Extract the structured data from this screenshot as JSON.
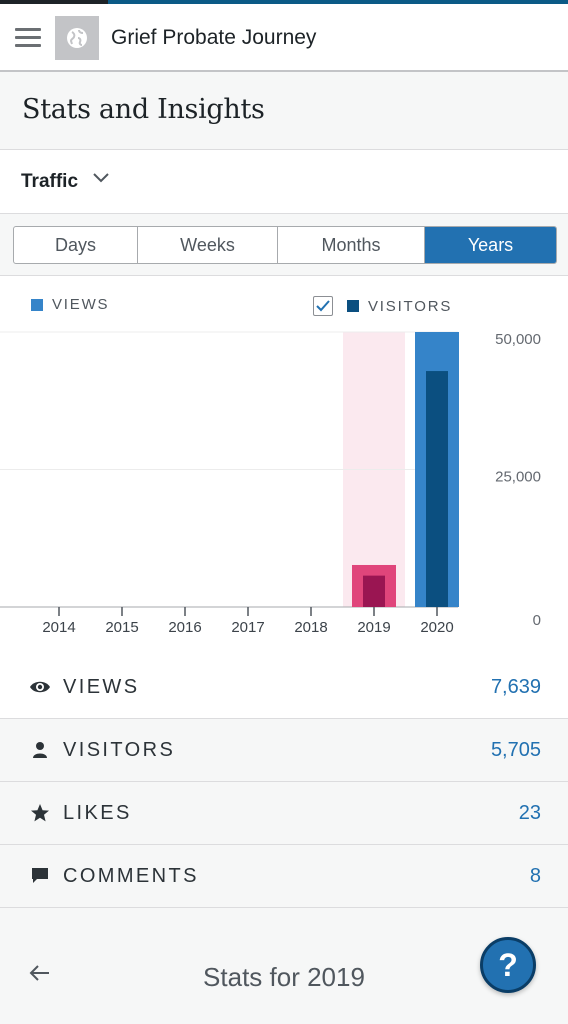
{
  "app": {
    "site_title": "Grief Probate Journey"
  },
  "page": {
    "title": "Stats and Insights"
  },
  "traffic": {
    "label": "Traffic"
  },
  "tabs": [
    {
      "label": "Days",
      "selected": false
    },
    {
      "label": "Weeks",
      "selected": false
    },
    {
      "label": "Months",
      "selected": false
    },
    {
      "label": "Years",
      "selected": true
    }
  ],
  "legend": {
    "views": "VIEWS",
    "visitors": "VISITORS",
    "visitors_checked": true
  },
  "chart_data": {
    "type": "bar",
    "categories": [
      "2014",
      "2015",
      "2016",
      "2017",
      "2018",
      "2019",
      "2020"
    ],
    "series": [
      {
        "name": "VIEWS",
        "values": [
          0,
          0,
          0,
          0,
          0,
          7639,
          50000
        ]
      },
      {
        "name": "VISITORS",
        "values": [
          0,
          0,
          0,
          0,
          0,
          5705,
          42900
        ]
      }
    ],
    "y_ticks": [
      "50,000",
      "25,000",
      "0"
    ],
    "ylim": [
      0,
      50000
    ],
    "selected_category": "2019",
    "grid": true,
    "colors": {
      "views": "#3584c9",
      "visitors": "#0b4f80",
      "views_selected": "#e0457b",
      "visitors_selected": "#9a1552",
      "selected_band": "#fbe9ef"
    }
  },
  "stats": [
    {
      "icon": "eye-icon",
      "label": "VIEWS",
      "value": "7,639"
    },
    {
      "icon": "person-icon",
      "label": "VISITORS",
      "value": "5,705"
    },
    {
      "icon": "star-icon",
      "label": "LIKES",
      "value": "23"
    },
    {
      "icon": "comment-icon",
      "label": "COMMENTS",
      "value": "8"
    }
  ],
  "footer": {
    "title": "Stats for 2019",
    "help_label": "?"
  }
}
